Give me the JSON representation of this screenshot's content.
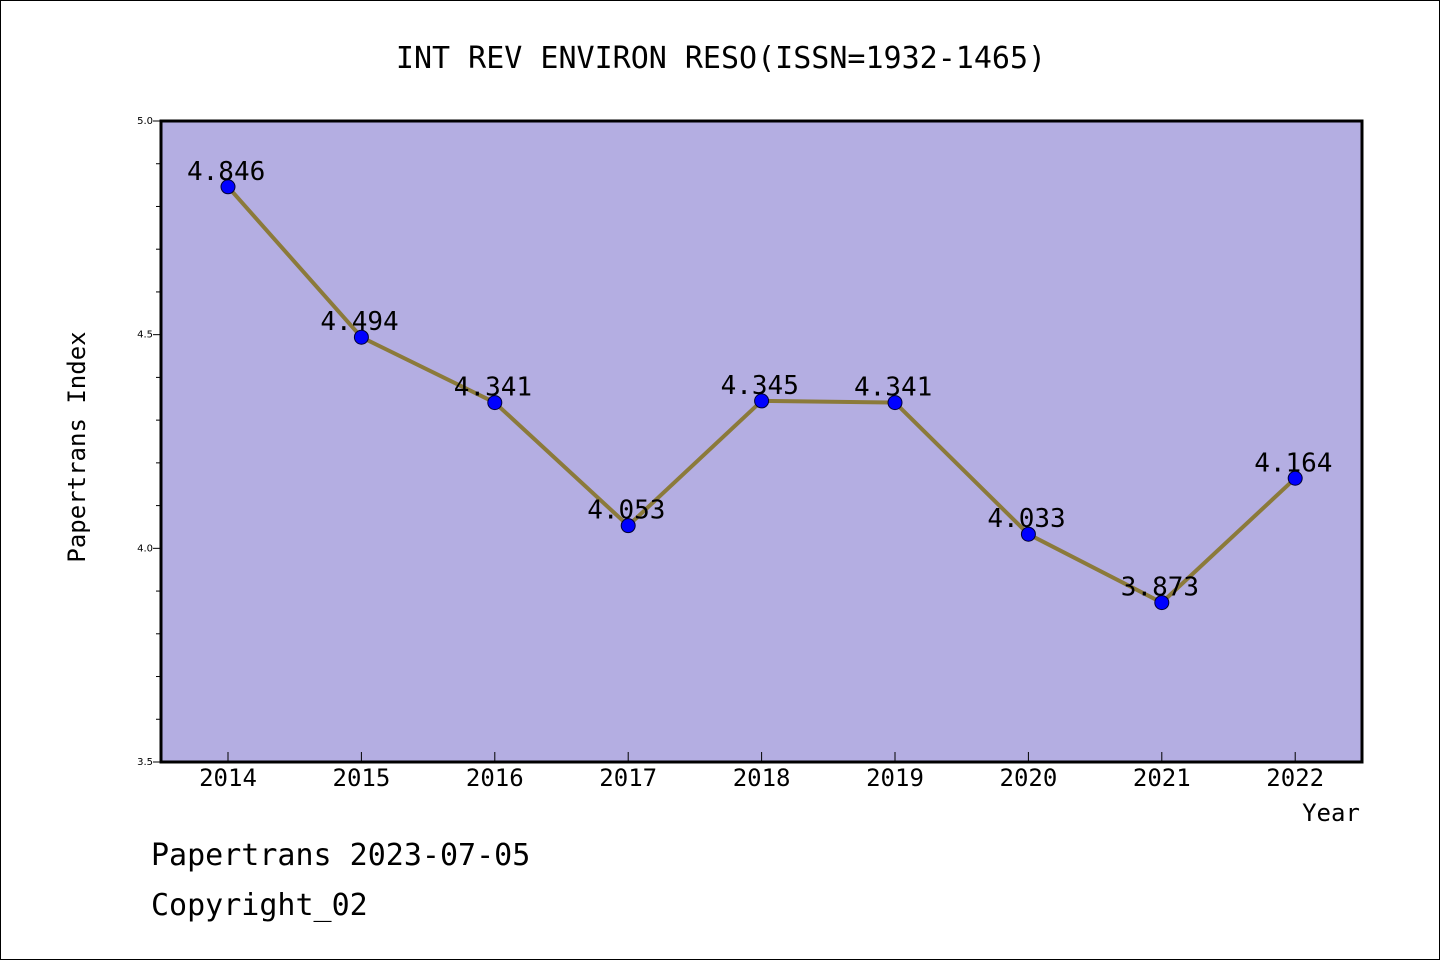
{
  "chart_data": {
    "type": "line",
    "title": "INT REV ENVIRON RESO(ISSN=1932-1465)",
    "xlabel": "Year",
    "ylabel": "Papertrans Index",
    "categories": [
      "2014",
      "2015",
      "2016",
      "2017",
      "2018",
      "2019",
      "2020",
      "2021",
      "2022"
    ],
    "series": [
      {
        "values": [
          4.846,
          4.494,
          4.341,
          4.053,
          4.345,
          4.341,
          4.033,
          3.873,
          4.164
        ],
        "data_labels": [
          "4.846",
          "4.494",
          "4.341",
          "4.053",
          "4.345",
          "4.341",
          "4.033",
          "3.873",
          "4.164"
        ],
        "line_color": "#8b7a3a",
        "marker_color": "#0000ff"
      }
    ],
    "ylim": [
      3.5,
      5.0
    ],
    "yticks": [
      "3.5",
      "4.0",
      "4.5",
      "5.0"
    ],
    "plot_background": "#b4aee2",
    "grid": false,
    "legend": "none"
  },
  "footer": {
    "line1": "Papertrans 2023-07-05",
    "line2": "Copyright_02"
  }
}
